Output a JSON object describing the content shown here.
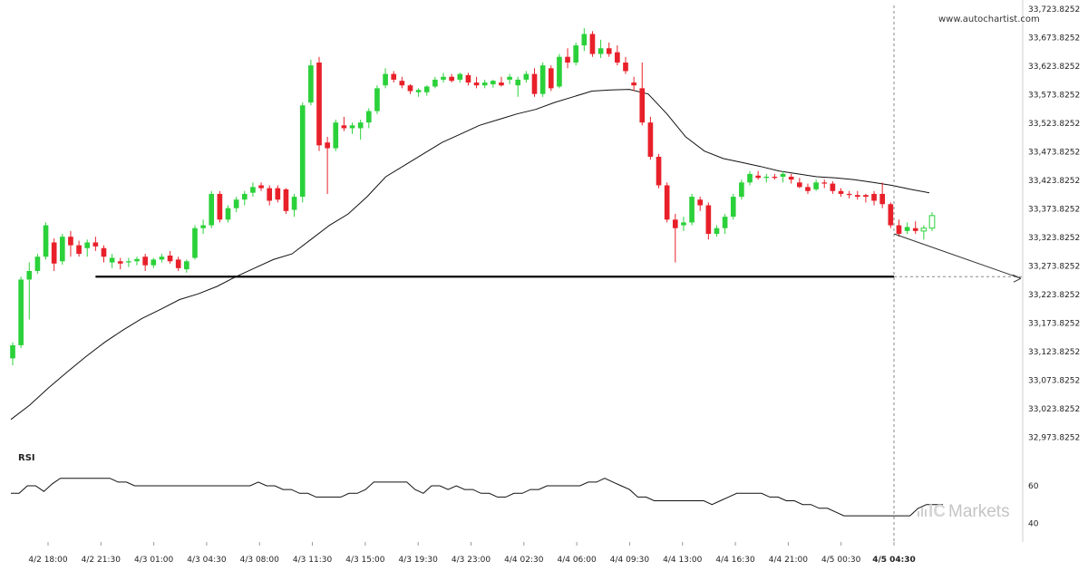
{
  "watermark": "www.autochartist.com",
  "indicator_title": "RSI",
  "brand": {
    "prefix": "IC",
    "name": "Markets"
  },
  "chart_data": {
    "type": "candlestick",
    "y_axis": {
      "ticks": [
        "33,723.8252",
        "33,673.8252",
        "33,623.8252",
        "33,573.8252",
        "33,523.8252",
        "33,473.8252",
        "33,423.8252",
        "33,373.8252",
        "33,323.8252",
        "33,273.8252",
        "33,223.8252",
        "33,173.8252",
        "33,123.8252",
        "33,073.8252",
        "33,023.8252",
        "32,973.8252"
      ],
      "tick_values": [
        33723.8252,
        33673.8252,
        33623.8252,
        33573.8252,
        33523.8252,
        33473.8252,
        33423.8252,
        33373.8252,
        33323.8252,
        33273.8252,
        33223.8252,
        33173.8252,
        33123.8252,
        33073.8252,
        33023.8252,
        32973.8252
      ],
      "range": [
        32965,
        33730
      ]
    },
    "x_axis": {
      "ticks": [
        "4/2 18:00",
        "4/2 21:30",
        "4/3 01:00",
        "4/3 04:30",
        "4/3 08:00",
        "4/3 11:30",
        "4/3 15:00",
        "4/3 19:30",
        "4/3 23:00",
        "4/4 02:30",
        "4/4 06:00",
        "4/4 09:30",
        "4/4 13:00",
        "4/4 16:30",
        "4/4 21:00",
        "4/5 00:30",
        "4/5 04:30"
      ],
      "current_index": 16
    },
    "support_level": 33255,
    "projection": {
      "start": 33330,
      "end": 33252
    },
    "candles": [
      [
        33112,
        33140,
        33100,
        33135
      ],
      [
        33135,
        33255,
        33130,
        33250
      ],
      [
        33250,
        33280,
        33180,
        33265
      ],
      [
        33265,
        33295,
        33260,
        33290
      ],
      [
        33290,
        33350,
        33285,
        33345
      ],
      [
        33315,
        33322,
        33265,
        33278
      ],
      [
        33282,
        33330,
        33276,
        33325
      ],
      [
        33325,
        33335,
        33290,
        33310
      ],
      [
        33310,
        33318,
        33290,
        33295
      ],
      [
        33305,
        33320,
        33290,
        33315
      ],
      [
        33315,
        33325,
        33300,
        33308
      ],
      [
        33305,
        33310,
        33280,
        33290
      ],
      [
        33280,
        33295,
        33270,
        33288
      ],
      [
        33282,
        33288,
        33268,
        33278
      ],
      [
        33280,
        33288,
        33272,
        33282
      ],
      [
        33282,
        33290,
        33275,
        33286
      ],
      [
        33290,
        33295,
        33265,
        33275
      ],
      [
        33275,
        33288,
        33270,
        33285
      ],
      [
        33285,
        33295,
        33280,
        33290
      ],
      [
        33292,
        33300,
        33278,
        33282
      ],
      [
        33285,
        33290,
        33265,
        33270
      ],
      [
        33268,
        33285,
        33262,
        33282
      ],
      [
        33288,
        33345,
        33285,
        33340
      ],
      [
        33340,
        33355,
        33330,
        33345
      ],
      [
        33345,
        33405,
        33340,
        33400
      ],
      [
        33400,
        33405,
        33350,
        33355
      ],
      [
        33355,
        33380,
        33350,
        33375
      ],
      [
        33375,
        33395,
        33368,
        33390
      ],
      [
        33390,
        33405,
        33380,
        33400
      ],
      [
        33402,
        33420,
        33395,
        33412
      ],
      [
        33415,
        33420,
        33405,
        33410
      ],
      [
        33410,
        33415,
        33380,
        33388
      ],
      [
        33410,
        33415,
        33385,
        33390
      ],
      [
        33408,
        33410,
        33365,
        33370
      ],
      [
        33372,
        33400,
        33360,
        33395
      ],
      [
        33395,
        33560,
        33385,
        33555
      ],
      [
        33560,
        33635,
        33555,
        33625
      ],
      [
        33630,
        33640,
        33475,
        33485
      ],
      [
        33490,
        33500,
        33400,
        33480
      ],
      [
        33480,
        33530,
        33475,
        33525
      ],
      [
        33520,
        33535,
        33510,
        33515
      ],
      [
        33515,
        33525,
        33505,
        33520
      ],
      [
        33515,
        33530,
        33495,
        33525
      ],
      [
        33525,
        33550,
        33515,
        33545
      ],
      [
        33545,
        33590,
        33540,
        33585
      ],
      [
        33590,
        33620,
        33585,
        33610
      ],
      [
        33610,
        33615,
        33595,
        33600
      ],
      [
        33598,
        33605,
        33585,
        33590
      ],
      [
        33590,
        33592,
        33575,
        33580
      ],
      [
        33578,
        33585,
        33570,
        33582
      ],
      [
        33578,
        33590,
        33572,
        33588
      ],
      [
        33588,
        33605,
        33585,
        33600
      ],
      [
        33600,
        33612,
        33595,
        33605
      ],
      [
        33605,
        33610,
        33595,
        33598
      ],
      [
        33600,
        33612,
        33595,
        33610
      ],
      [
        33608,
        33612,
        33590,
        33595
      ],
      [
        33595,
        33605,
        33585,
        33590
      ],
      [
        33590,
        33600,
        33585,
        33595
      ],
      [
        33592,
        33600,
        33586,
        33598
      ],
      [
        33595,
        33605,
        33588,
        33590
      ],
      [
        33600,
        33610,
        33592,
        33605
      ],
      [
        33590,
        33605,
        33570,
        33600
      ],
      [
        33600,
        33615,
        33595,
        33610
      ],
      [
        33610,
        33620,
        33570,
        33575
      ],
      [
        33575,
        33630,
        33570,
        33625
      ],
      [
        33620,
        33625,
        33580,
        33585
      ],
      [
        33588,
        33645,
        33585,
        33640
      ],
      [
        33640,
        33655,
        33620,
        33630
      ],
      [
        33630,
        33665,
        33625,
        33660
      ],
      [
        33660,
        33690,
        33650,
        33680
      ],
      [
        33680,
        33685,
        33640,
        33645
      ],
      [
        33645,
        33670,
        33638,
        33655
      ],
      [
        33655,
        33665,
        33640,
        33645
      ],
      [
        33648,
        33660,
        33625,
        33630
      ],
      [
        33630,
        33640,
        33610,
        33615
      ],
      [
        33595,
        33605,
        33580,
        33590
      ],
      [
        33585,
        33630,
        33520,
        33525
      ],
      [
        33525,
        33535,
        33460,
        33465
      ],
      [
        33465,
        33470,
        33410,
        33415
      ],
      [
        33415,
        33420,
        33350,
        33355
      ],
      [
        33355,
        33365,
        33280,
        33340
      ],
      [
        33345,
        33360,
        33335,
        33350
      ],
      [
        33350,
        33400,
        33345,
        33395
      ],
      [
        33390,
        33395,
        33370,
        33380
      ],
      [
        33380,
        33385,
        33320,
        33330
      ],
      [
        33330,
        33345,
        33325,
        33340
      ],
      [
        33340,
        33365,
        33330,
        33360
      ],
      [
        33360,
        33400,
        33355,
        33395
      ],
      [
        33395,
        33425,
        33390,
        33420
      ],
      [
        33420,
        33440,
        33415,
        33435
      ],
      [
        33432,
        33440,
        33425,
        33428
      ],
      [
        33428,
        33435,
        33420,
        33430
      ],
      [
        33430,
        33435,
        33425,
        33428
      ],
      [
        33430,
        33440,
        33420,
        33435
      ],
      [
        33430,
        33435,
        33418,
        33425
      ],
      [
        33420,
        33428,
        33410,
        33412
      ],
      [
        33412,
        33418,
        33400,
        33405
      ],
      [
        33408,
        33425,
        33405,
        33420
      ],
      [
        33420,
        33425,
        33410,
        33418
      ],
      [
        33418,
        33422,
        33400,
        33405
      ],
      [
        33405,
        33410,
        33395,
        33400
      ],
      [
        33400,
        33405,
        33392,
        33398
      ],
      [
        33398,
        33405,
        33390,
        33395
      ],
      [
        33398,
        33400,
        33385,
        33395
      ],
      [
        33400,
        33405,
        33380,
        33388
      ],
      [
        33400,
        33420,
        33375,
        33382
      ],
      [
        33382,
        33385,
        33340,
        33345
      ],
      [
        33345,
        33355,
        33325,
        33330
      ],
      [
        33335,
        33350,
        33330,
        33342
      ],
      [
        33340,
        33352,
        33330,
        33335
      ],
      [
        33335,
        33345,
        33320,
        33340
      ],
      [
        33340,
        33368,
        33335,
        33362
      ]
    ],
    "moving_average": [
      33005,
      33030,
      33060,
      33088,
      33115,
      33140,
      33162,
      33182,
      33198,
      33215,
      33225,
      33238,
      33255,
      33270,
      33285,
      33295,
      33320,
      33345,
      33365,
      33395,
      33430,
      33450,
      33470,
      33490,
      33505,
      33520,
      33530,
      33540,
      33548,
      33560,
      33570,
      33580,
      33582,
      33583,
      33575,
      33540,
      33500,
      33475,
      33462,
      33455,
      33448,
      33440,
      33435,
      33430,
      33428,
      33425,
      33420,
      33415,
      33408,
      33402
    ],
    "rsi": {
      "label": "RSI",
      "ticks": [
        "60",
        "40"
      ],
      "tick_values": [
        60,
        40
      ],
      "range": [
        30,
        75
      ],
      "values": [
        56,
        56,
        60,
        60,
        57,
        61,
        64,
        64,
        64,
        64,
        64,
        64,
        64,
        62,
        62,
        60,
        60,
        60,
        60,
        60,
        60,
        60,
        60,
        60,
        60,
        60,
        60,
        60,
        60,
        60,
        62,
        60,
        60,
        58,
        58,
        56,
        56,
        54,
        54,
        54,
        54,
        56,
        56,
        58,
        62,
        62,
        62,
        62,
        62,
        58,
        56,
        60,
        60,
        58,
        60,
        58,
        58,
        56,
        56,
        54,
        54,
        56,
        56,
        58,
        58,
        60,
        60,
        60,
        60,
        60,
        62,
        62,
        64,
        62,
        60,
        58,
        54,
        54,
        52,
        52,
        52,
        52,
        52,
        52,
        52,
        50,
        52,
        54,
        56,
        56,
        56,
        56,
        54,
        54,
        52,
        52,
        50,
        50,
        48,
        48,
        46,
        44,
        44,
        44,
        44,
        44,
        44,
        44,
        44,
        44,
        48,
        50,
        50,
        50
      ]
    }
  }
}
